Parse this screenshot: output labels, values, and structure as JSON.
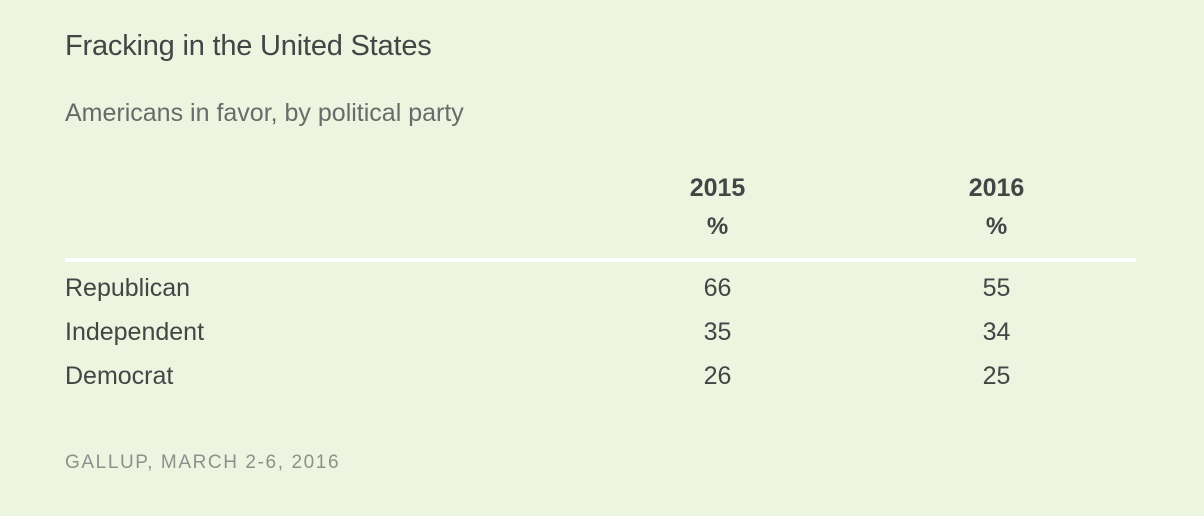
{
  "chart_data": {
    "type": "table",
    "title": "Fracking in the United States",
    "subtitle": "Americans in favor, by political party",
    "columns": [
      "2015",
      "2016"
    ],
    "unit": "%",
    "rows": [
      {
        "label": "Republican",
        "values": [
          "66",
          "55"
        ]
      },
      {
        "label": "Independent",
        "values": [
          "35",
          "34"
        ]
      },
      {
        "label": "Democrat",
        "values": [
          "26",
          "25"
        ]
      }
    ],
    "source": "GALLUP, MARCH 2-6, 2016"
  }
}
